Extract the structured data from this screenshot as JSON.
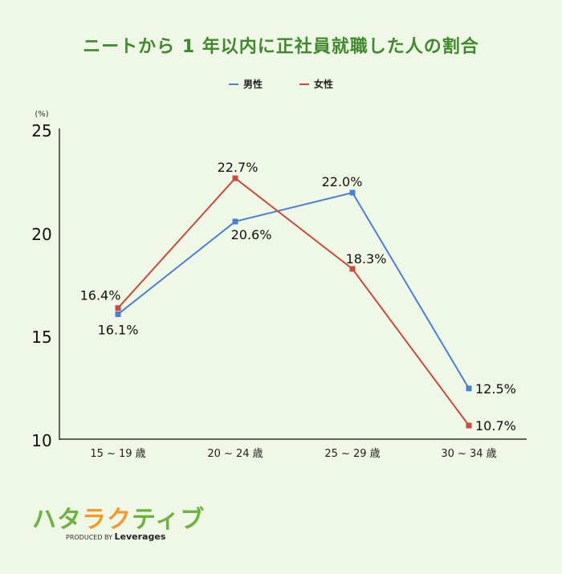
{
  "title": "ニートから 1 年以内に正社員就職した人の割合",
  "legend": [
    {
      "label": "男性",
      "color": "#4a7fd4"
    },
    {
      "label": "女性",
      "color": "#cc4a3c"
    }
  ],
  "logo": {
    "text": "ハタラクティブ",
    "sub_prefix": "PRODUCED BY",
    "sub_brand": "Leverages"
  },
  "chart_data": {
    "type": "line",
    "title": "ニートから 1 年以内に正社員就職した人の割合",
    "ylabel": "(%)",
    "xlabel": "",
    "categories": [
      "15 ~ 19 歳",
      "20 ~ 24 歳",
      "25 ~ 29 歳",
      "30 ~ 34 歳"
    ],
    "series": [
      {
        "name": "男性",
        "color": "#4a7fd4",
        "values": [
          16.1,
          20.6,
          22.0,
          12.5
        ],
        "labels": [
          "16.1%",
          "20.6%",
          "22.0%",
          "12.5%"
        ]
      },
      {
        "name": "女性",
        "color": "#cc4a3c",
        "values": [
          16.4,
          22.7,
          18.3,
          10.7
        ],
        "labels": [
          "16.4%",
          "22.7%",
          "18.3%",
          "10.7%"
        ]
      }
    ],
    "ylim": [
      10,
      25
    ],
    "yticks": [
      "25",
      "20",
      "15",
      "10"
    ],
    "grid": false,
    "legend_position": "top"
  }
}
